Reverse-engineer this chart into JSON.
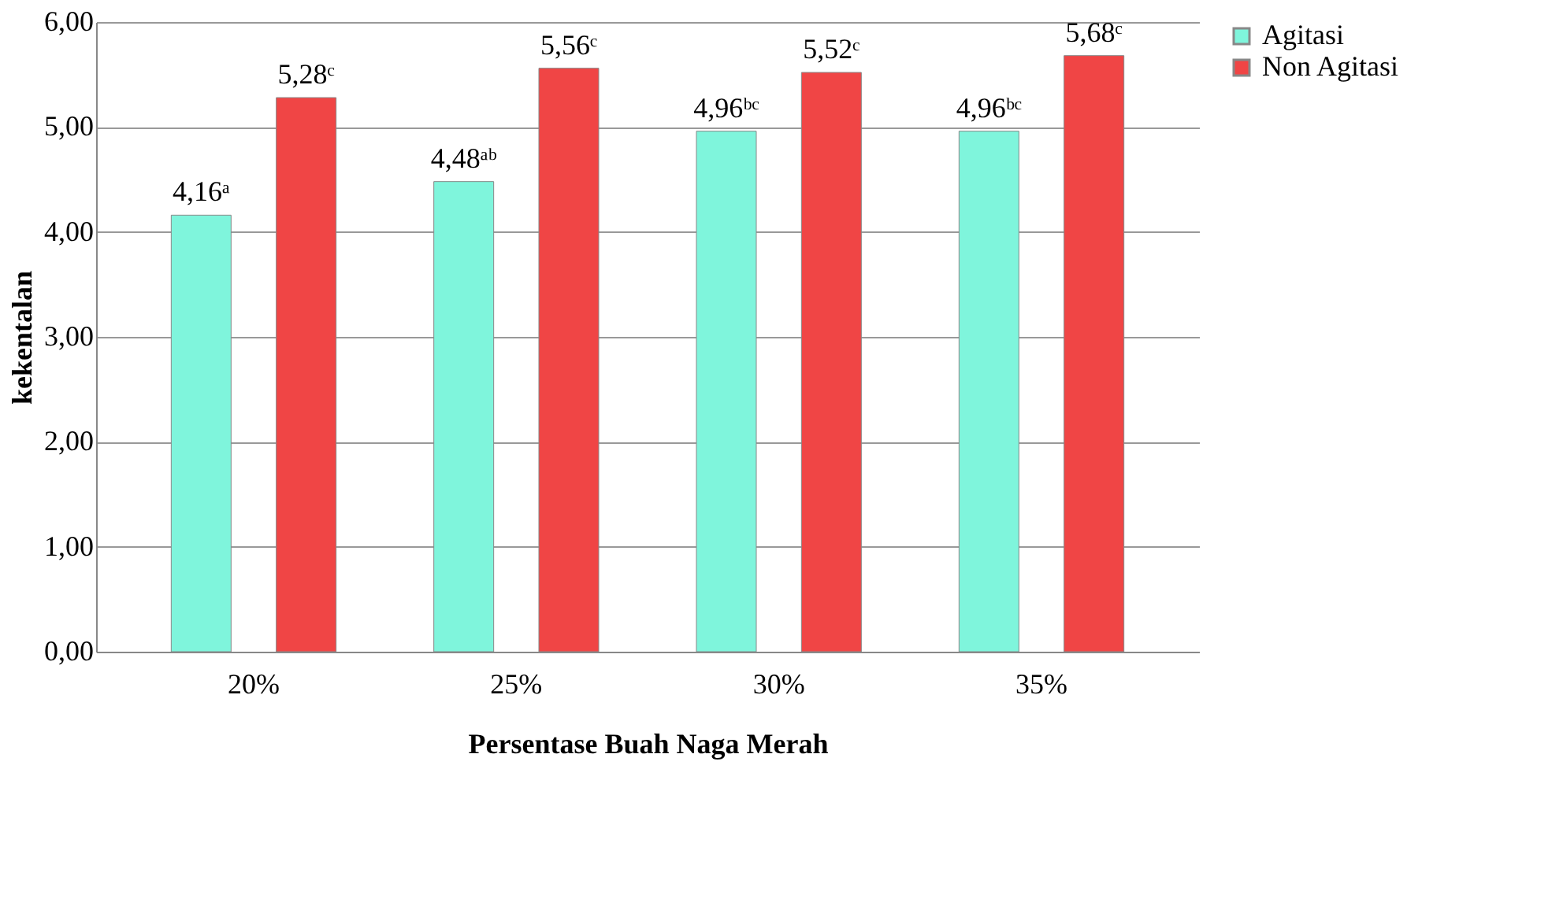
{
  "chart_data": {
    "type": "bar",
    "xlabel": "Persentase Buah Naga Merah",
    "ylabel": "kekentalan",
    "categories": [
      "20%",
      "25%",
      "30%",
      "35%"
    ],
    "series": [
      {
        "name": "Agitasi",
        "color": "#7ff5dc",
        "values": [
          4.16,
          4.48,
          4.96,
          4.96
        ],
        "value_labels": [
          "4,16ᵃ",
          "4,48ᵃᵇ",
          "4,96ᵇᶜ",
          "4,96ᵇᶜ"
        ]
      },
      {
        "name": "Non Agitasi",
        "color": "#f04545",
        "values": [
          5.28,
          5.56,
          5.52,
          5.68
        ],
        "value_labels": [
          "5,28ᶜ",
          "5,56ᶜ",
          "5,52ᶜ",
          "5,68ᶜ"
        ]
      }
    ],
    "ylim": [
      0,
      6
    ],
    "yticks": [
      {
        "value": 0,
        "label": "0,00"
      },
      {
        "value": 1,
        "label": "1,00"
      },
      {
        "value": 2,
        "label": "2,00"
      },
      {
        "value": 3,
        "label": "3,00"
      },
      {
        "value": 4,
        "label": "4,00"
      },
      {
        "value": 5,
        "label": "5,00"
      },
      {
        "value": 6,
        "label": "6,00"
      }
    ],
    "grid": "y",
    "legend": "right"
  }
}
